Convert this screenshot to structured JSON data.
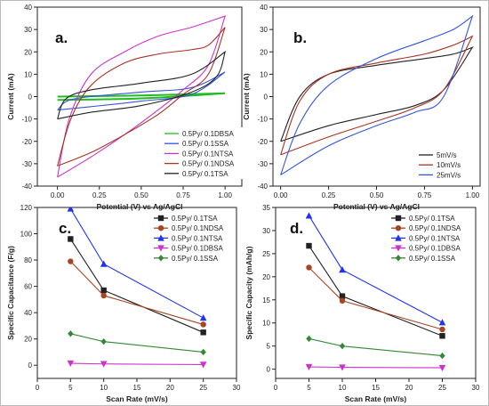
{
  "chart_data": [
    {
      "panel": "a.",
      "type": "line",
      "xlabel": "Potential (V) vs Ag/AgCl",
      "ylabel": "Current (mA)",
      "xlim": [
        -0.12,
        1.1
      ],
      "ylim": [
        -40,
        40
      ],
      "xticks": [
        "0.00",
        "0.25",
        "0.50",
        "0.75",
        "1.00"
      ],
      "xtick_values": [
        0,
        0.25,
        0.5,
        0.75,
        1.0
      ],
      "yticks": [
        "-40",
        "-30",
        "-20",
        "-10",
        "0",
        "10",
        "20",
        "30",
        "40"
      ],
      "ytick_values": [
        -40,
        -30,
        -20,
        -10,
        0,
        10,
        20,
        30,
        40
      ],
      "legend_position": "bottom-right",
      "series": [
        {
          "name": "0.5Py/ 0.1DBSA",
          "color": "#22bb22",
          "upper": [
            [
              0,
              0
            ],
            [
              0.5,
              0.5
            ],
            [
              1,
              1.5
            ]
          ],
          "lower": [
            [
              0,
              -1.5
            ],
            [
              0.5,
              -0.8
            ],
            [
              1,
              1.5
            ]
          ]
        },
        {
          "name": "0.5Py/ 0.1SSA",
          "color": "#3355dd",
          "upper": [
            [
              0,
              -6
            ],
            [
              0.1,
              -1
            ],
            [
              0.5,
              2
            ],
            [
              0.8,
              4
            ],
            [
              1,
              11
            ]
          ],
          "lower": [
            [
              0,
              -6
            ],
            [
              0.2,
              -4.5
            ],
            [
              0.5,
              -2
            ],
            [
              0.8,
              1
            ],
            [
              1,
              11
            ]
          ]
        },
        {
          "name": "0.5Py/ 0.1NTSA",
          "color": "#cc33cc",
          "upper": [
            [
              0,
              -36
            ],
            [
              0.07,
              -10
            ],
            [
              0.2,
              10
            ],
            [
              0.4,
              20
            ],
            [
              0.6,
              27
            ],
            [
              0.8,
              31
            ],
            [
              1,
              36
            ]
          ],
          "lower": [
            [
              0,
              -36
            ],
            [
              0.2,
              -27
            ],
            [
              0.4,
              -17
            ],
            [
              0.6,
              -6
            ],
            [
              0.75,
              3
            ],
            [
              0.9,
              14
            ],
            [
              1,
              36
            ]
          ]
        },
        {
          "name": "0.5Py/ 0.1NDSA",
          "color": "#aa3322",
          "upper": [
            [
              0,
              -31
            ],
            [
              0.08,
              -10
            ],
            [
              0.2,
              5
            ],
            [
              0.4,
              15
            ],
            [
              0.6,
              19
            ],
            [
              0.8,
              21
            ],
            [
              0.9,
              23
            ],
            [
              1,
              31
            ]
          ],
          "lower": [
            [
              0,
              -31
            ],
            [
              0.2,
              -25
            ],
            [
              0.4,
              -17
            ],
            [
              0.6,
              -8
            ],
            [
              0.75,
              1
            ],
            [
              0.9,
              10
            ],
            [
              1,
              31
            ]
          ]
        },
        {
          "name": "0.5Py/ 0.1TSA",
          "color": "#222222",
          "upper": [
            [
              0,
              -10
            ],
            [
              0.05,
              -1
            ],
            [
              0.2,
              3
            ],
            [
              0.5,
              6
            ],
            [
              0.8,
              10
            ],
            [
              1,
              20
            ]
          ],
          "lower": [
            [
              0,
              -10
            ],
            [
              0.2,
              -7
            ],
            [
              0.5,
              -4
            ],
            [
              0.8,
              2
            ],
            [
              0.95,
              9
            ],
            [
              1,
              20
            ]
          ]
        }
      ]
    },
    {
      "panel": "b.",
      "type": "line",
      "xlabel": "Potential (V) vs Ag/AgCl",
      "ylabel": "Current (mA)",
      "xlim": [
        -0.04,
        1.04
      ],
      "ylim": [
        -40,
        40
      ],
      "xticks": [
        "0.00",
        "0.25",
        "0.50",
        "0.75",
        "1.00"
      ],
      "xtick_values": [
        0,
        0.25,
        0.5,
        0.75,
        1.0
      ],
      "yticks": [
        "-40",
        "-30",
        "-20",
        "-10",
        "0",
        "10",
        "20",
        "30",
        "40"
      ],
      "ytick_values": [
        -40,
        -30,
        -20,
        -10,
        0,
        10,
        20,
        30,
        40
      ],
      "legend_position": "bottom-right",
      "series": [
        {
          "name": "5mV/s",
          "color": "#222222",
          "upper": [
            [
              0,
              -20
            ],
            [
              0.1,
              0
            ],
            [
              0.25,
              10
            ],
            [
              0.5,
              14
            ],
            [
              0.75,
              17
            ],
            [
              0.9,
              19
            ],
            [
              1,
              22
            ]
          ],
          "lower": [
            [
              0,
              -20
            ],
            [
              0.25,
              -13
            ],
            [
              0.5,
              -8
            ],
            [
              0.7,
              -4
            ],
            [
              0.85,
              3
            ],
            [
              1,
              22
            ]
          ]
        },
        {
          "name": "10mV/s",
          "color": "#aa3322",
          "upper": [
            [
              0,
              -26
            ],
            [
              0.1,
              -2
            ],
            [
              0.25,
              10
            ],
            [
              0.5,
              15
            ],
            [
              0.75,
              19
            ],
            [
              0.9,
              23
            ],
            [
              1,
              27
            ]
          ],
          "lower": [
            [
              0,
              -26
            ],
            [
              0.25,
              -18
            ],
            [
              0.5,
              -11
            ],
            [
              0.7,
              -5
            ],
            [
              0.85,
              3
            ],
            [
              1,
              27
            ]
          ]
        },
        {
          "name": "25mV/s",
          "color": "#3355dd",
          "upper": [
            [
              0,
              -35
            ],
            [
              0.1,
              -12
            ],
            [
              0.25,
              5
            ],
            [
              0.5,
              17
            ],
            [
              0.75,
              25
            ],
            [
              0.9,
              30
            ],
            [
              1,
              36
            ]
          ],
          "lower": [
            [
              0,
              -35
            ],
            [
              0.25,
              -22
            ],
            [
              0.5,
              -13
            ],
            [
              0.7,
              -7
            ],
            [
              0.85,
              0
            ],
            [
              1,
              36
            ]
          ]
        }
      ]
    },
    {
      "panel": "c.",
      "type": "line",
      "xlabel": "Scan Rate (mV/s)",
      "ylabel": "Specific Capacitance (F/g)",
      "xlim": [
        0,
        30
      ],
      "ylim": [
        -10,
        120
      ],
      "xticks": [
        "0",
        "5",
        "10",
        "15",
        "20",
        "25",
        "30"
      ],
      "xtick_values": [
        0,
        5,
        10,
        15,
        20,
        25,
        30
      ],
      "yticks": [
        "0",
        "20",
        "40",
        "60",
        "80",
        "100",
        "120"
      ],
      "ytick_values": [
        0,
        20,
        40,
        60,
        80,
        100,
        120
      ],
      "legend_position": "top-right",
      "x": [
        5,
        10,
        25
      ],
      "series": [
        {
          "name": "0.5Py/ 0.1TSA",
          "color": "#222222",
          "marker": "square",
          "values": [
            96,
            57,
            25
          ]
        },
        {
          "name": "0.5Py/ 0.1NDSA",
          "color": "#aa4422",
          "marker": "circle",
          "values": [
            79,
            53,
            31
          ]
        },
        {
          "name": "0.5Py/ 0.1NTSA",
          "color": "#2233ee",
          "marker": "triangle-up",
          "values": [
            119,
            77,
            36
          ]
        },
        {
          "name": "0.5Py/ 0.1DBSA",
          "color": "#cc33cc",
          "marker": "triangle-down",
          "values": [
            1.5,
            1,
            0.5
          ]
        },
        {
          "name": "0.5Py/ 0.1SSA",
          "color": "#338833",
          "marker": "diamond",
          "values": [
            24,
            18,
            10
          ]
        }
      ]
    },
    {
      "panel": "d.",
      "type": "line",
      "xlabel": "Scan Rate (mV/s)",
      "ylabel": "Specific Capacity (mAh/g)",
      "xlim": [
        0,
        30
      ],
      "ylim": [
        -2,
        35
      ],
      "xticks": [
        "0",
        "5",
        "10",
        "15",
        "20",
        "25",
        "30"
      ],
      "xtick_values": [
        0,
        5,
        10,
        15,
        20,
        25,
        30
      ],
      "yticks": [
        "0",
        "5",
        "10",
        "15",
        "20",
        "25",
        "30",
        "35"
      ],
      "ytick_values": [
        0,
        5,
        10,
        15,
        20,
        25,
        30,
        35
      ],
      "legend_position": "top-right",
      "x": [
        5,
        10,
        25
      ],
      "series": [
        {
          "name": "0.5Py/ 0.1TSA",
          "color": "#222222",
          "marker": "square",
          "values": [
            26.7,
            15.8,
            7.2
          ]
        },
        {
          "name": "0.5Py/ 0.1NDSA",
          "color": "#aa4422",
          "marker": "circle",
          "values": [
            22,
            14.8,
            8.6
          ]
        },
        {
          "name": "0.5Py/ 0.1NTSA",
          "color": "#2233ee",
          "marker": "triangle-up",
          "values": [
            33.2,
            21.5,
            10.1
          ]
        },
        {
          "name": "0.5Py/ 0.1DBSA",
          "color": "#cc33cc",
          "marker": "triangle-down",
          "values": [
            0.5,
            0.4,
            0.3
          ]
        },
        {
          "name": "0.5Py/ 0.1SSA",
          "color": "#338833",
          "marker": "diamond",
          "values": [
            6.6,
            5,
            2.9
          ]
        }
      ]
    }
  ]
}
